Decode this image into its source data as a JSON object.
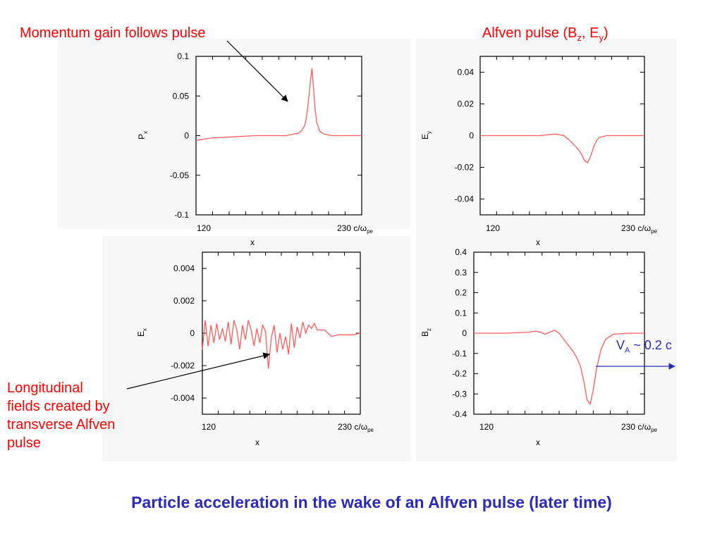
{
  "annotations": {
    "momentum": "Momentum gain follows pulse",
    "alfven_title_prefix": "Alfven pulse (B",
    "alfven_title_sub1": "z",
    "alfven_title_mid": ", E",
    "alfven_title_sub2": "y",
    "alfven_title_suffix": ")",
    "longitudinal_lines": [
      "Longitudinal",
      "fields created by",
      "transverse Alfven",
      "pulse"
    ],
    "va_main": "V",
    "va_sub": "A",
    "va_rest": " ~ 0.2 c"
  },
  "x_axis_text": {
    "left": "120",
    "right_main": "230 c/ω",
    "right_sub": "pe",
    "title": "x"
  },
  "footer": {
    "title": "Particle acceleration in the wake of an Alfven pulse (later time)"
  },
  "colors": {
    "annotation_red": "#ff0000",
    "title_blue": "#2b2bb8",
    "curve_red": "#ff5a5a"
  },
  "chart_data": [
    {
      "type": "line",
      "ylabel_main": "P",
      "ylabel_sub": "x",
      "xlabel": "x",
      "xlim": [
        120,
        230
      ],
      "ylim": [
        -0.1,
        0.1
      ],
      "yticks": [
        "0.1",
        "0.05",
        "0",
        "-0.05",
        "-0.1"
      ],
      "ytick_values": [
        0.1,
        0.05,
        0,
        -0.05,
        -0.1
      ],
      "series": [
        {
          "x": [
            120,
            130,
            140,
            150,
            160,
            170,
            180,
            185,
            188,
            190,
            192,
            193,
            194,
            195,
            196,
            197,
            198,
            199,
            200,
            202,
            205,
            210,
            220,
            230
          ],
          "y": [
            -0.006,
            -0.003,
            -0.002,
            -0.001,
            0.0,
            0.0,
            0.0,
            0.002,
            0.003,
            0.006,
            0.012,
            0.02,
            0.033,
            0.05,
            0.07,
            0.085,
            0.06,
            0.035,
            0.018,
            0.006,
            0.002,
            0.0,
            0.0,
            0.0
          ]
        }
      ]
    },
    {
      "type": "line",
      "ylabel_main": "E",
      "ylabel_sub": "y",
      "xlabel": "x",
      "xlim": [
        120,
        230
      ],
      "ylim": [
        -0.05,
        0.05
      ],
      "yticks": [
        "0.04",
        "0.02",
        "0",
        "-0.02",
        "-0.04"
      ],
      "ytick_values": [
        0.04,
        0.02,
        0,
        -0.02,
        -0.04
      ],
      "series": [
        {
          "x": [
            120,
            140,
            160,
            165,
            170,
            173,
            176,
            178,
            180,
            182,
            184,
            186,
            188,
            190,
            192,
            194,
            196,
            198,
            200,
            205,
            210,
            220,
            230
          ],
          "y": [
            0.0,
            0.0,
            0.0,
            0.0005,
            0.001,
            0.0005,
            0.0,
            -0.0015,
            -0.003,
            -0.005,
            -0.007,
            -0.009,
            -0.012,
            -0.016,
            -0.017,
            -0.013,
            -0.007,
            -0.003,
            -0.001,
            0.0,
            0.0,
            0.0,
            0.0
          ]
        }
      ]
    },
    {
      "type": "line",
      "ylabel_main": "E",
      "ylabel_sub": "x",
      "xlabel": "x",
      "xlim": [
        120,
        230
      ],
      "ylim": [
        -0.005,
        0.005
      ],
      "yticks": [
        "0.004",
        "0.002",
        "0",
        "-0.002",
        "-0.004"
      ],
      "ytick_values": [
        0.004,
        0.002,
        0,
        -0.002,
        -0.004
      ],
      "series": [
        {
          "x": [
            120,
            122,
            124,
            126,
            128,
            130,
            132,
            134,
            136,
            138,
            140,
            142,
            144,
            146,
            148,
            150,
            152,
            154,
            156,
            158,
            160,
            162,
            164,
            166,
            168,
            170,
            172,
            174,
            176,
            178,
            180,
            182,
            184,
            186,
            188,
            190,
            192,
            194,
            196,
            198,
            200,
            205,
            210,
            215,
            220,
            225,
            230
          ],
          "y": [
            -0.001,
            0.0008,
            -0.0008,
            0.0005,
            -0.0006,
            0.0006,
            -0.0004,
            0.0003,
            -0.0005,
            0.0007,
            -0.0007,
            0.0008,
            0.0002,
            -0.001,
            0.0005,
            -0.0004,
            0.0008,
            0.0002,
            -0.0008,
            0.0003,
            -0.0006,
            0.0005,
            0.0001,
            -0.0022,
            -0.0003,
            0.0005,
            -0.0012,
            0.0,
            -0.001,
            -0.0002,
            -0.0013,
            0.0006,
            -0.0009,
            0.0004,
            -0.0003,
            0.0007,
            0.0,
            0.0005,
            0.0003,
            0.0006,
            0.0002,
            0.0002,
            -0.0002,
            -0.0001,
            -0.0001,
            -0.0001,
            0.0
          ]
        }
      ]
    },
    {
      "type": "line",
      "ylabel_main": "B",
      "ylabel_sub": "z",
      "xlabel": "x",
      "xlim": [
        120,
        230
      ],
      "ylim": [
        -0.4,
        0.4
      ],
      "yticks": [
        "0.4",
        "0.3",
        "0.2",
        "0.1",
        "0",
        "-0.1",
        "-0.2",
        "-0.3",
        "-0.4"
      ],
      "ytick_values": [
        0.4,
        0.3,
        0.2,
        0.1,
        0,
        -0.1,
        -0.2,
        -0.3,
        -0.4
      ],
      "series": [
        {
          "x": [
            120,
            140,
            155,
            160,
            163,
            166,
            169,
            172,
            175,
            178,
            181,
            184,
            187,
            189,
            191,
            193,
            195,
            197,
            199,
            202,
            205,
            210,
            220,
            230
          ],
          "y": [
            0.0,
            0.0,
            0.005,
            0.01,
            0.005,
            -0.005,
            0.005,
            0.015,
            0.0,
            -0.03,
            -0.06,
            -0.09,
            -0.13,
            -0.17,
            -0.24,
            -0.33,
            -0.35,
            -0.28,
            -0.18,
            -0.08,
            -0.03,
            -0.005,
            0.0,
            0.0
          ]
        }
      ]
    }
  ]
}
